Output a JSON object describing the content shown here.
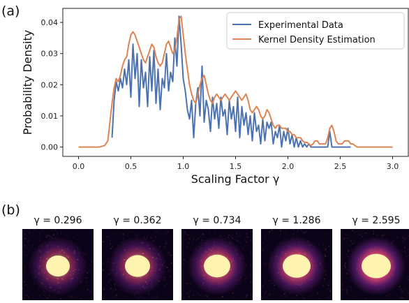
{
  "panel_a_label": "(a)",
  "panel_b_label": "(b)",
  "chart_data": {
    "type": "line",
    "xlabel": "Scaling Factor γ",
    "ylabel": "Probability Density",
    "xlim": [
      -0.15,
      3.15
    ],
    "ylim": [
      -0.003,
      0.0445
    ],
    "x_ticks": [
      "0.0",
      "0.5",
      "1.0",
      "1.5",
      "2.0",
      "2.5",
      "3.0"
    ],
    "y_ticks": [
      "0.00",
      "0.01",
      "0.02",
      "0.03",
      "0.04"
    ],
    "grid": false,
    "legend_position": "top-right",
    "series": [
      {
        "name": "Experimental Data",
        "color": "#4c72b0",
        "x": [
          0.32,
          0.34,
          0.36,
          0.38,
          0.4,
          0.42,
          0.44,
          0.46,
          0.48,
          0.5,
          0.52,
          0.54,
          0.56,
          0.58,
          0.6,
          0.62,
          0.64,
          0.66,
          0.68,
          0.7,
          0.72,
          0.74,
          0.76,
          0.78,
          0.8,
          0.82,
          0.84,
          0.86,
          0.88,
          0.9,
          0.92,
          0.94,
          0.96,
          0.98,
          1.0,
          1.02,
          1.04,
          1.06,
          1.08,
          1.1,
          1.12,
          1.14,
          1.16,
          1.18,
          1.2,
          1.22,
          1.24,
          1.26,
          1.28,
          1.3,
          1.32,
          1.34,
          1.36,
          1.38,
          1.4,
          1.42,
          1.44,
          1.46,
          1.48,
          1.5,
          1.52,
          1.54,
          1.56,
          1.58,
          1.6,
          1.62,
          1.64,
          1.66,
          1.68,
          1.7,
          1.72,
          1.74,
          1.76,
          1.78,
          1.8,
          1.82,
          1.84,
          1.86,
          1.88,
          1.9,
          1.92,
          1.94,
          1.96,
          1.98,
          2.0,
          2.02,
          2.04,
          2.06,
          2.08,
          2.1,
          2.12,
          2.14,
          2.16,
          2.18,
          2.2,
          2.22,
          2.24,
          2.26,
          2.28,
          2.3,
          2.32,
          2.34,
          2.36,
          2.38,
          2.4,
          2.42,
          2.44,
          2.46,
          2.48,
          2.5,
          2.52,
          2.54,
          2.56,
          2.58,
          2.6
        ],
        "y": [
          0.003,
          0.015,
          0.021,
          0.018,
          0.022,
          0.019,
          0.025,
          0.02,
          0.028,
          0.016,
          0.033,
          0.022,
          0.03,
          0.013,
          0.028,
          0.019,
          0.024,
          0.013,
          0.029,
          0.018,
          0.031,
          0.014,
          0.025,
          0.012,
          0.022,
          0.019,
          0.03,
          0.018,
          0.024,
          0.021,
          0.035,
          0.026,
          0.042,
          0.033,
          0.022,
          0.018,
          0.012,
          0.009,
          0.015,
          0.003,
          0.014,
          0.019,
          0.01,
          0.026,
          0.008,
          0.015,
          0.012,
          0.005,
          0.016,
          0.009,
          0.014,
          0.006,
          0.016,
          0.01,
          0.012,
          0.004,
          0.015,
          0.009,
          0.013,
          0.005,
          0.016,
          0.003,
          0.013,
          0.007,
          0.011,
          0.004,
          0.01,
          0.002,
          0.011,
          0.005,
          0.007,
          0.001,
          0.009,
          0.002,
          0.008,
          0.006,
          0.008,
          0.001,
          0.005,
          0.003,
          0.007,
          0.0,
          0.005,
          0.002,
          0.006,
          0.001,
          0.004,
          0.0,
          0.003,
          0.0,
          0.002,
          0.0,
          0.001,
          0.0,
          0.001,
          0.0,
          0.0,
          0.0,
          0.0,
          0.0,
          0.0,
          0.0,
          0.0,
          0.0,
          0.005,
          0.0,
          0.0,
          0.0,
          0.0,
          0.0,
          0.0,
          0.0,
          0.0,
          0.0,
          0.0
        ]
      },
      {
        "name": "Kernel Density Estimation",
        "color": "#dd8452",
        "x": [
          0.0,
          0.2,
          0.25,
          0.28,
          0.3,
          0.32,
          0.34,
          0.36,
          0.38,
          0.4,
          0.42,
          0.44,
          0.46,
          0.48,
          0.5,
          0.52,
          0.54,
          0.56,
          0.58,
          0.6,
          0.62,
          0.64,
          0.66,
          0.68,
          0.7,
          0.72,
          0.74,
          0.76,
          0.78,
          0.8,
          0.82,
          0.84,
          0.86,
          0.88,
          0.9,
          0.92,
          0.94,
          0.96,
          0.98,
          1.0,
          1.02,
          1.04,
          1.06,
          1.08,
          1.1,
          1.12,
          1.14,
          1.16,
          1.18,
          1.2,
          1.22,
          1.24,
          1.26,
          1.28,
          1.3,
          1.32,
          1.34,
          1.36,
          1.38,
          1.4,
          1.42,
          1.44,
          1.46,
          1.48,
          1.5,
          1.52,
          1.54,
          1.56,
          1.58,
          1.6,
          1.62,
          1.64,
          1.66,
          1.68,
          1.7,
          1.72,
          1.74,
          1.76,
          1.78,
          1.8,
          1.82,
          1.84,
          1.86,
          1.88,
          1.9,
          1.92,
          1.94,
          1.96,
          1.98,
          2.0,
          2.02,
          2.04,
          2.06,
          2.08,
          2.1,
          2.12,
          2.14,
          2.16,
          2.18,
          2.2,
          2.22,
          2.24,
          2.26,
          2.28,
          2.3,
          2.32,
          2.34,
          2.36,
          2.38,
          2.4,
          2.42,
          2.44,
          2.46,
          2.48,
          2.5,
          2.52,
          2.54,
          2.56,
          2.58,
          2.6,
          2.62,
          2.64,
          2.66,
          2.7,
          2.8,
          3.0
        ],
        "y": [
          0.0,
          0.0,
          0.0005,
          0.002,
          0.008,
          0.014,
          0.019,
          0.022,
          0.021,
          0.023,
          0.026,
          0.028,
          0.029,
          0.033,
          0.036,
          0.037,
          0.036,
          0.034,
          0.032,
          0.03,
          0.028,
          0.027,
          0.029,
          0.031,
          0.033,
          0.032,
          0.029,
          0.027,
          0.026,
          0.027,
          0.03,
          0.033,
          0.034,
          0.032,
          0.03,
          0.031,
          0.035,
          0.041,
          0.042,
          0.036,
          0.03,
          0.025,
          0.02,
          0.017,
          0.015,
          0.014,
          0.017,
          0.02,
          0.022,
          0.023,
          0.02,
          0.017,
          0.015,
          0.014,
          0.016,
          0.017,
          0.016,
          0.015,
          0.016,
          0.017,
          0.016,
          0.015,
          0.016,
          0.017,
          0.018,
          0.017,
          0.016,
          0.015,
          0.016,
          0.017,
          0.015,
          0.012,
          0.011,
          0.012,
          0.013,
          0.012,
          0.01,
          0.009,
          0.01,
          0.012,
          0.011,
          0.009,
          0.007,
          0.006,
          0.007,
          0.007,
          0.006,
          0.006,
          0.006,
          0.005,
          0.005,
          0.004,
          0.004,
          0.003,
          0.003,
          0.003,
          0.002,
          0.0015,
          0.0015,
          0.001,
          0.0005,
          0.001,
          0.002,
          0.002,
          0.001,
          0.001,
          0.001,
          0.001,
          0.003,
          0.006,
          0.007,
          0.005,
          0.002,
          0.001,
          0.001,
          0.001,
          0.002,
          0.002,
          0.002,
          0.001,
          0.001,
          0.0005,
          0.0,
          0.0,
          0.0,
          0.0
        ]
      }
    ]
  },
  "panel_b": {
    "images": [
      {
        "title": "γ = 0.296",
        "intensity": 0.55
      },
      {
        "title": "γ = 0.362",
        "intensity": 0.6
      },
      {
        "title": "γ = 0.734",
        "intensity": 0.7
      },
      {
        "title": "γ = 1.286",
        "intensity": 0.75
      },
      {
        "title": "γ = 2.595",
        "intensity": 0.85
      }
    ]
  },
  "colors": {
    "axis": "#222222",
    "image_background": "#0b0418",
    "image_core": "#fff3b0"
  }
}
